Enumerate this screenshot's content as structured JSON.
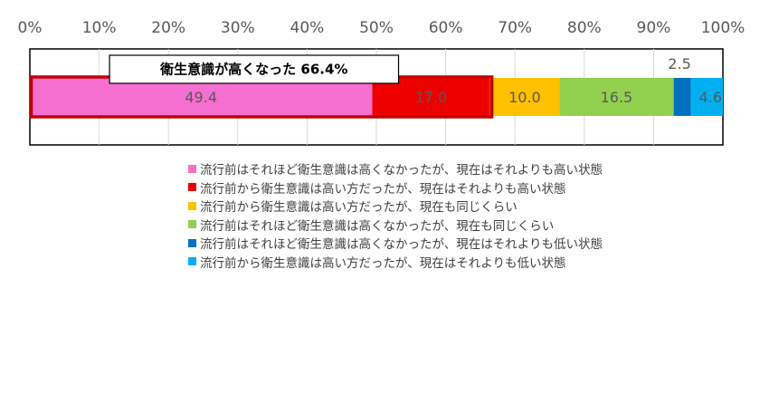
{
  "chart_data": {
    "type": "bar",
    "orientation": "horizontal-stacked-100",
    "x_ticks": [
      "0%",
      "10%",
      "20%",
      "30%",
      "40%",
      "50%",
      "60%",
      "70%",
      "80%",
      "90%",
      "100%"
    ],
    "xlim": [
      0,
      100
    ],
    "grid": true,
    "legend_position": "bottom",
    "callout": "衛生意識が高くなった 66.4%",
    "series": [
      {
        "name": "流行前はそれほど衛生意識は高くなかったが、現在はそれよりも高い状態",
        "values": [
          49.4
        ],
        "label": "49.4",
        "color": "#f46fcf"
      },
      {
        "name": "流行前から衛生意識は高い方だったが、現在はそれよりも高い状態",
        "values": [
          17.0
        ],
        "label": "17.0",
        "color": "#ee0000"
      },
      {
        "name": "流行前から衛生意識は高い方だったが、現在も同じくらい",
        "values": [
          10.0
        ],
        "label": "10.0",
        "color": "#ffc000"
      },
      {
        "name": "流行前はそれほど衛生意識は高くなかったが、現在も同じくらい",
        "values": [
          16.5
        ],
        "label": "16.5",
        "color": "#92d050"
      },
      {
        "name": "流行前はそれほど衛生意識は高くなかったが、現在はそれよりも低い状態",
        "values": [
          2.5
        ],
        "label": "2.5",
        "color": "#0070c0"
      },
      {
        "name": "流行前から衛生意識は高い方だったが、現在はそれよりも低い状態",
        "values": [
          4.6
        ],
        "label": "4.6",
        "color": "#00b0f0"
      }
    ]
  }
}
